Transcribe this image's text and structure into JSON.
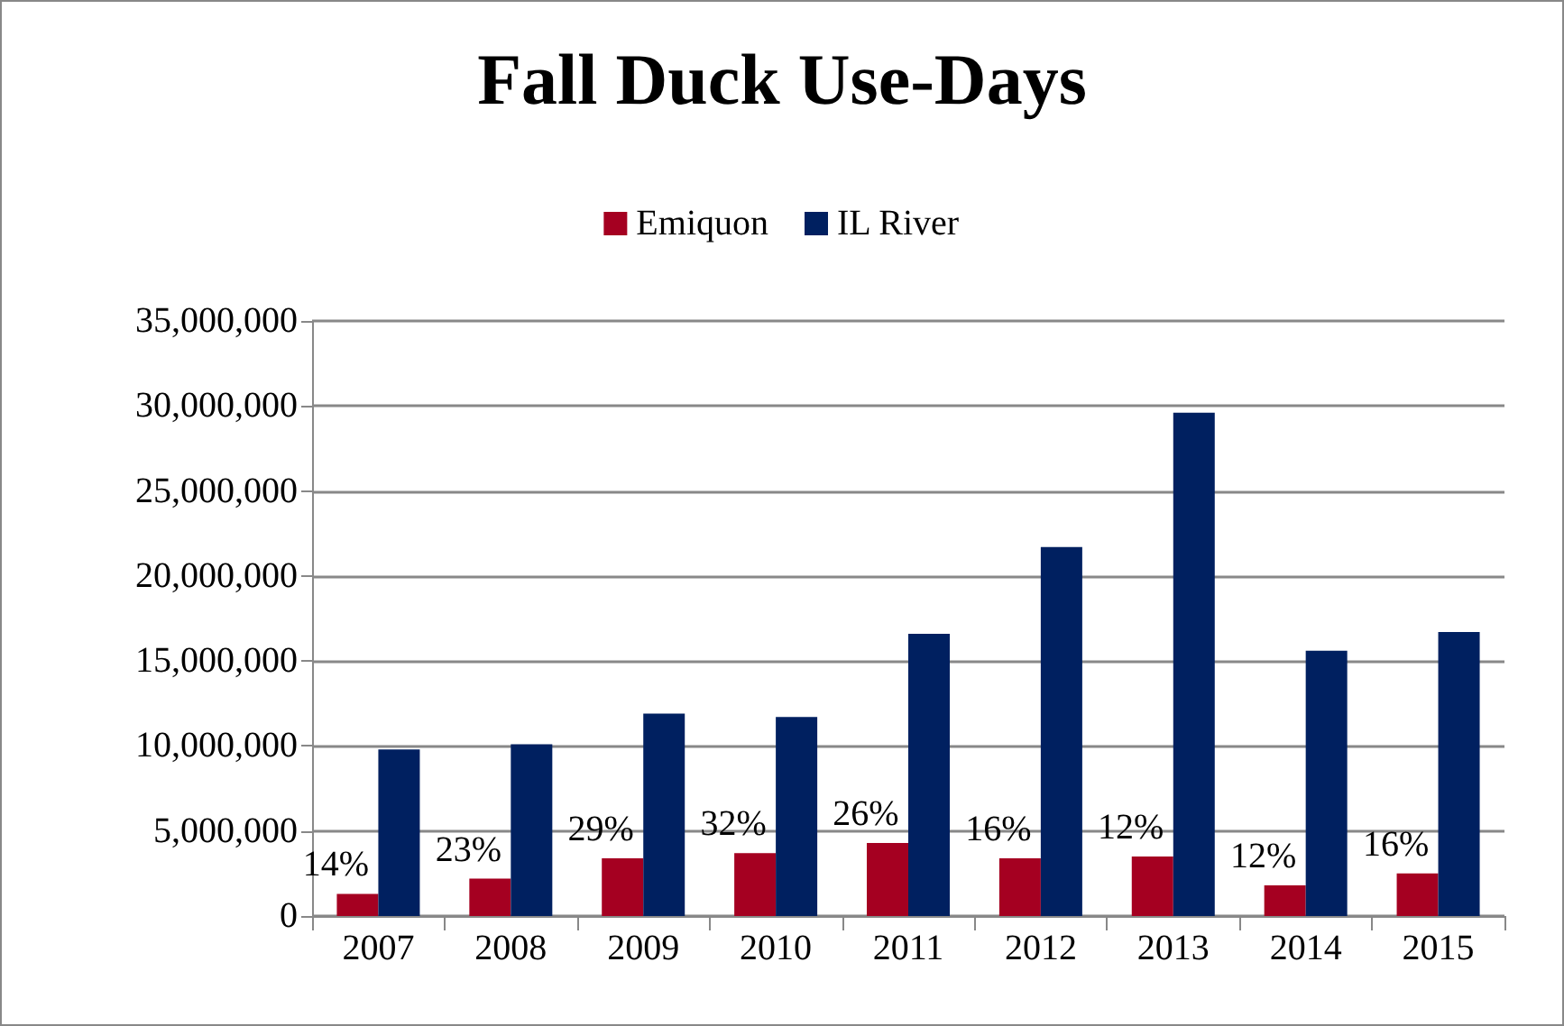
{
  "chart_data": {
    "type": "bar",
    "title": "Fall Duck Use-Days",
    "categories": [
      "2007",
      "2008",
      "2009",
      "2010",
      "2011",
      "2012",
      "2013",
      "2014",
      "2015"
    ],
    "series": [
      {
        "name": "Emiquon",
        "color": "#a50021",
        "values": [
          1300000,
          2200000,
          3400000,
          3700000,
          4300000,
          3400000,
          3500000,
          1800000,
          2500000
        ]
      },
      {
        "name": "IL River",
        "color": "#002060",
        "values": [
          9800000,
          10100000,
          11900000,
          11700000,
          16600000,
          21700000,
          29600000,
          15600000,
          16700000
        ]
      }
    ],
    "annotations": [
      {
        "text": "14%",
        "x": "2007",
        "y": 1300000
      },
      {
        "text": "23%",
        "x": "2008",
        "y": 2200000
      },
      {
        "text": "29%",
        "x": "2009",
        "y": 3400000
      },
      {
        "text": "32%",
        "x": "2010",
        "y": 3700000
      },
      {
        "text": "26%",
        "x": "2011",
        "y": 4300000
      },
      {
        "text": "16%",
        "x": "2012",
        "y": 3400000
      },
      {
        "text": "12%",
        "x": "2013",
        "y": 3500000
      },
      {
        "text": "12%",
        "x": "2014",
        "y": 1800000
      },
      {
        "text": "16%",
        "x": "2015",
        "y": 2500000
      }
    ],
    "ylim": [
      0,
      35000000
    ],
    "yticks": [
      0,
      {
        "value": 5000000,
        "label": "5,000,000"
      },
      {
        "value": 10000000,
        "label": "10,000,000"
      },
      {
        "value": 15000000,
        "label": "15,000,000"
      },
      {
        "value": 20000000,
        "label": "20,000,000"
      },
      {
        "value": 25000000,
        "label": "25,000,000"
      },
      {
        "value": 30000000,
        "label": "30,000,000"
      },
      {
        "value": 35000000,
        "label": "35,000,000"
      }
    ],
    "grid": "y",
    "legend": "top"
  }
}
